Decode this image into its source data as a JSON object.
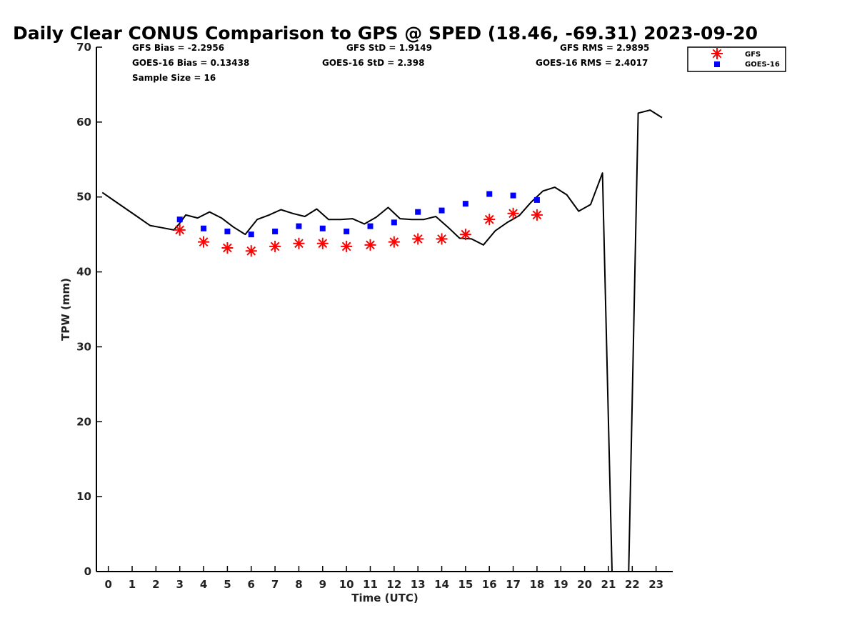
{
  "chart_data": {
    "type": "line",
    "title": "Daily Clear CONUS Comparison to GPS @ SPED (18.46, -69.31) 2023-09-20",
    "xlabel": "Time (UTC)",
    "ylabel": "TPW (mm)",
    "xlim": [
      -0.5,
      23.7
    ],
    "ylim": [
      0,
      70
    ],
    "x_ticks": [
      0,
      1,
      2,
      3,
      4,
      5,
      6,
      7,
      8,
      9,
      10,
      11,
      12,
      13,
      14,
      15,
      16,
      17,
      18,
      19,
      20,
      21,
      22,
      23
    ],
    "y_ticks": [
      0,
      10,
      20,
      30,
      40,
      50,
      60,
      70
    ],
    "grid": false,
    "legend_position": "top-right",
    "stats": {
      "gfs_bias": "GFS Bias = -2.2956",
      "gfs_std": "GFS StD = 1.9149",
      "gfs_rms": "GFS RMS = 2.9895",
      "goes_bias": "GOES-16 Bias = 0.13438",
      "goes_std": "GOES-16 StD = 2.398",
      "goes_rms": "GOES-16 RMS = 2.4017",
      "sample_size": "Sample Size = 16"
    },
    "series": [
      {
        "type": "line",
        "color": "#000000",
        "x": [
          -0.25,
          0.25,
          0.75,
          1.25,
          1.75,
          2.25,
          2.75,
          3.0,
          3.25,
          3.75,
          4.25,
          4.75,
          5.25,
          5.75,
          6.25,
          6.75,
          7.25,
          7.75,
          8.25,
          8.75,
          9.25,
          9.75,
          10.25,
          10.75,
          11.25,
          11.75,
          12.25,
          12.75,
          13.25,
          13.75,
          14.25,
          14.75,
          15.25,
          15.75,
          16.25,
          16.75,
          17.25,
          17.75,
          18.25,
          18.75,
          19.25,
          19.75,
          20.25,
          20.75,
          21.15,
          21.85,
          22.25,
          22.75,
          23.25
        ],
        "y": [
          50.6,
          49.5,
          48.4,
          47.3,
          46.2,
          45.9,
          45.6,
          46.5,
          47.6,
          47.2,
          48.0,
          47.2,
          46.0,
          45.0,
          47.0,
          47.6,
          48.3,
          47.8,
          47.4,
          48.4,
          47.0,
          47.0,
          47.1,
          46.4,
          47.3,
          48.6,
          47.1,
          47.0,
          47.0,
          47.4,
          46.0,
          44.5,
          44.4,
          43.6,
          45.5,
          46.6,
          47.5,
          49.3,
          50.8,
          51.3,
          50.3,
          48.1,
          49.0,
          53.2,
          0.0,
          0.0,
          61.2,
          61.6,
          60.6
        ]
      },
      {
        "name": "GFS",
        "type": "scatter",
        "marker": "asterisk",
        "color": "#ff0000",
        "x": [
          3,
          4,
          5,
          6,
          7,
          8,
          9,
          10,
          11,
          12,
          13,
          14,
          15,
          16,
          17,
          18
        ],
        "y": [
          45.6,
          44.0,
          43.2,
          42.8,
          43.4,
          43.8,
          43.8,
          43.4,
          43.6,
          44.0,
          44.4,
          44.4,
          45.0,
          47.0,
          47.8,
          47.6
        ]
      },
      {
        "name": "GOES-16",
        "type": "scatter",
        "marker": "square",
        "color": "#0000ff",
        "x": [
          3,
          4,
          5,
          6,
          7,
          8,
          9,
          10,
          11,
          12,
          13,
          14,
          15,
          16,
          17,
          18
        ],
        "y": [
          47.0,
          45.8,
          45.4,
          45.0,
          45.4,
          46.1,
          45.8,
          45.4,
          46.1,
          46.6,
          48.0,
          48.2,
          49.1,
          50.4,
          50.2,
          49.6
        ]
      }
    ]
  }
}
